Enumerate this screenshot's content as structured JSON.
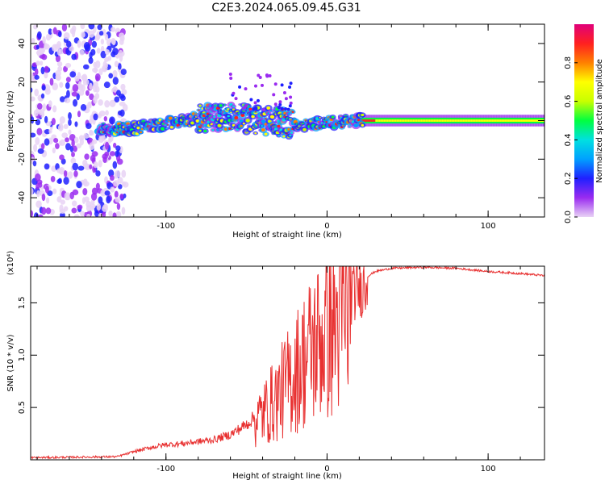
{
  "title": "C2E3.2024.065.09.45.G31",
  "chart_data": [
    {
      "type": "heatmap",
      "xlabel": "Height of straight line (km)",
      "ylabel": "Frequency (Hz)",
      "xlim": [
        -184,
        135
      ],
      "ylim": [
        -50,
        50
      ],
      "xticks": [
        -100,
        0,
        100
      ],
      "yticks": [
        -40,
        -20,
        0,
        20,
        40
      ],
      "colorbar": {
        "label": "Normalized spectral amplitude",
        "range": [
          0,
          1
        ],
        "ticks": [
          "0.0",
          "0.2",
          "0.4",
          "0.6",
          "0.8"
        ],
        "colors": [
          "#e8d2f5",
          "#9a2bf0",
          "#2020ff",
          "#00a0ff",
          "#00e0e0",
          "#00ff40",
          "#c8ff00",
          "#ffff00",
          "#ff8000",
          "#ff2020",
          "#e0007a"
        ]
      },
      "ridge": {
        "description_points_x": [
          -140,
          -120,
          -100,
          -80,
          -60,
          -40,
          -20,
          0,
          20,
          60,
          100,
          135
        ],
        "description_points_y": [
          -4,
          -4,
          -2,
          1,
          2,
          0,
          -2,
          -1,
          0,
          0,
          0,
          0
        ]
      }
    },
    {
      "type": "line",
      "xlabel": "Height of straight line (km)",
      "ylabel": "SNR (10 * v/v)",
      "scale_label": "(x10⁴)",
      "xlim": [
        -184,
        135
      ],
      "ylim": [
        0,
        1.85
      ],
      "xticks": [
        -100,
        0,
        100
      ],
      "yticks": [
        "0.5",
        "1.0",
        "1.5"
      ],
      "line_color": "#e83030",
      "series_envelope": {
        "x": [
          -184,
          -130,
          -120,
          -110,
          -100,
          -90,
          -80,
          -70,
          -60,
          -50,
          -40,
          -30,
          -20,
          -10,
          0,
          10,
          20,
          30,
          40,
          60,
          80,
          100,
          120,
          135
        ],
        "y": [
          0.02,
          0.03,
          0.08,
          0.12,
          0.15,
          0.16,
          0.18,
          0.2,
          0.25,
          0.35,
          0.5,
          0.7,
          0.95,
          1.2,
          1.4,
          1.55,
          1.7,
          1.8,
          1.83,
          1.84,
          1.83,
          1.8,
          1.78,
          1.76
        ]
      }
    }
  ]
}
